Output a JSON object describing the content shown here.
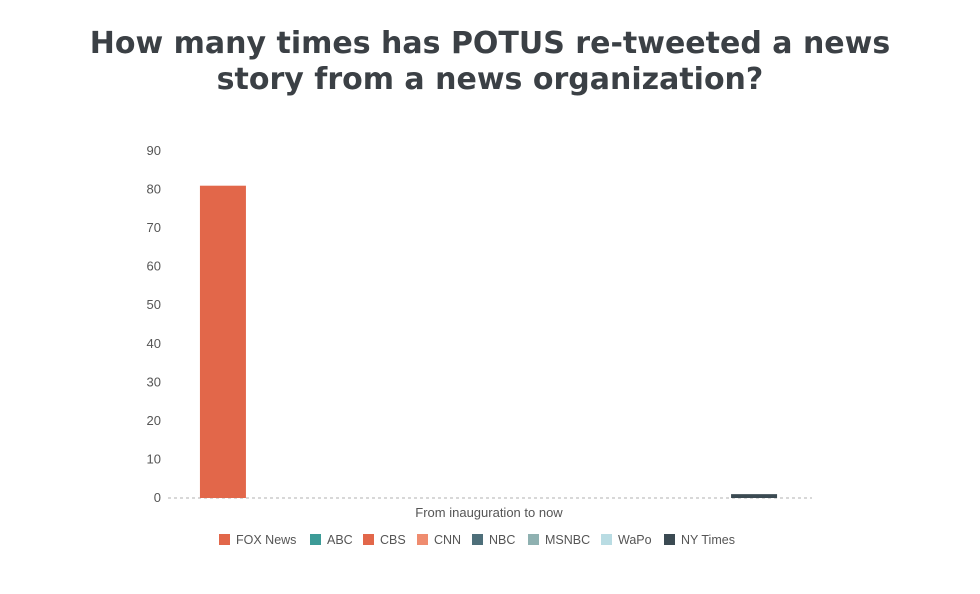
{
  "title": {
    "line1": "How many times has POTUS re-tweeted a news",
    "line2": "story from a news organization?"
  },
  "chart_data": {
    "type": "bar",
    "title": "How many times has POTUS re-tweeted a news story from a news organization?",
    "xlabel": "From inauguration to now",
    "ylabel": "",
    "ylim": [
      0,
      90
    ],
    "yticks": [
      0,
      10,
      20,
      30,
      40,
      50,
      60,
      70,
      80,
      90
    ],
    "grid": false,
    "legend_position": "bottom",
    "categories": [
      "From inauguration to now"
    ],
    "series": [
      {
        "name": "FOX News",
        "values": [
          81
        ],
        "color": "#e2674a"
      },
      {
        "name": "ABC",
        "values": [
          0
        ],
        "color": "#3c9b97"
      },
      {
        "name": "CBS",
        "values": [
          0
        ],
        "color": "#e2674a"
      },
      {
        "name": "CNN",
        "values": [
          0
        ],
        "color": "#ef8c6f"
      },
      {
        "name": "NBC",
        "values": [
          0
        ],
        "color": "#4e6f7a"
      },
      {
        "name": "MSNBC",
        "values": [
          0
        ],
        "color": "#8fb1b1"
      },
      {
        "name": "WaPo",
        "values": [
          0
        ],
        "color": "#b9dce3"
      },
      {
        "name": "NY Times",
        "values": [
          1
        ],
        "color": "#3b4a52"
      }
    ]
  }
}
